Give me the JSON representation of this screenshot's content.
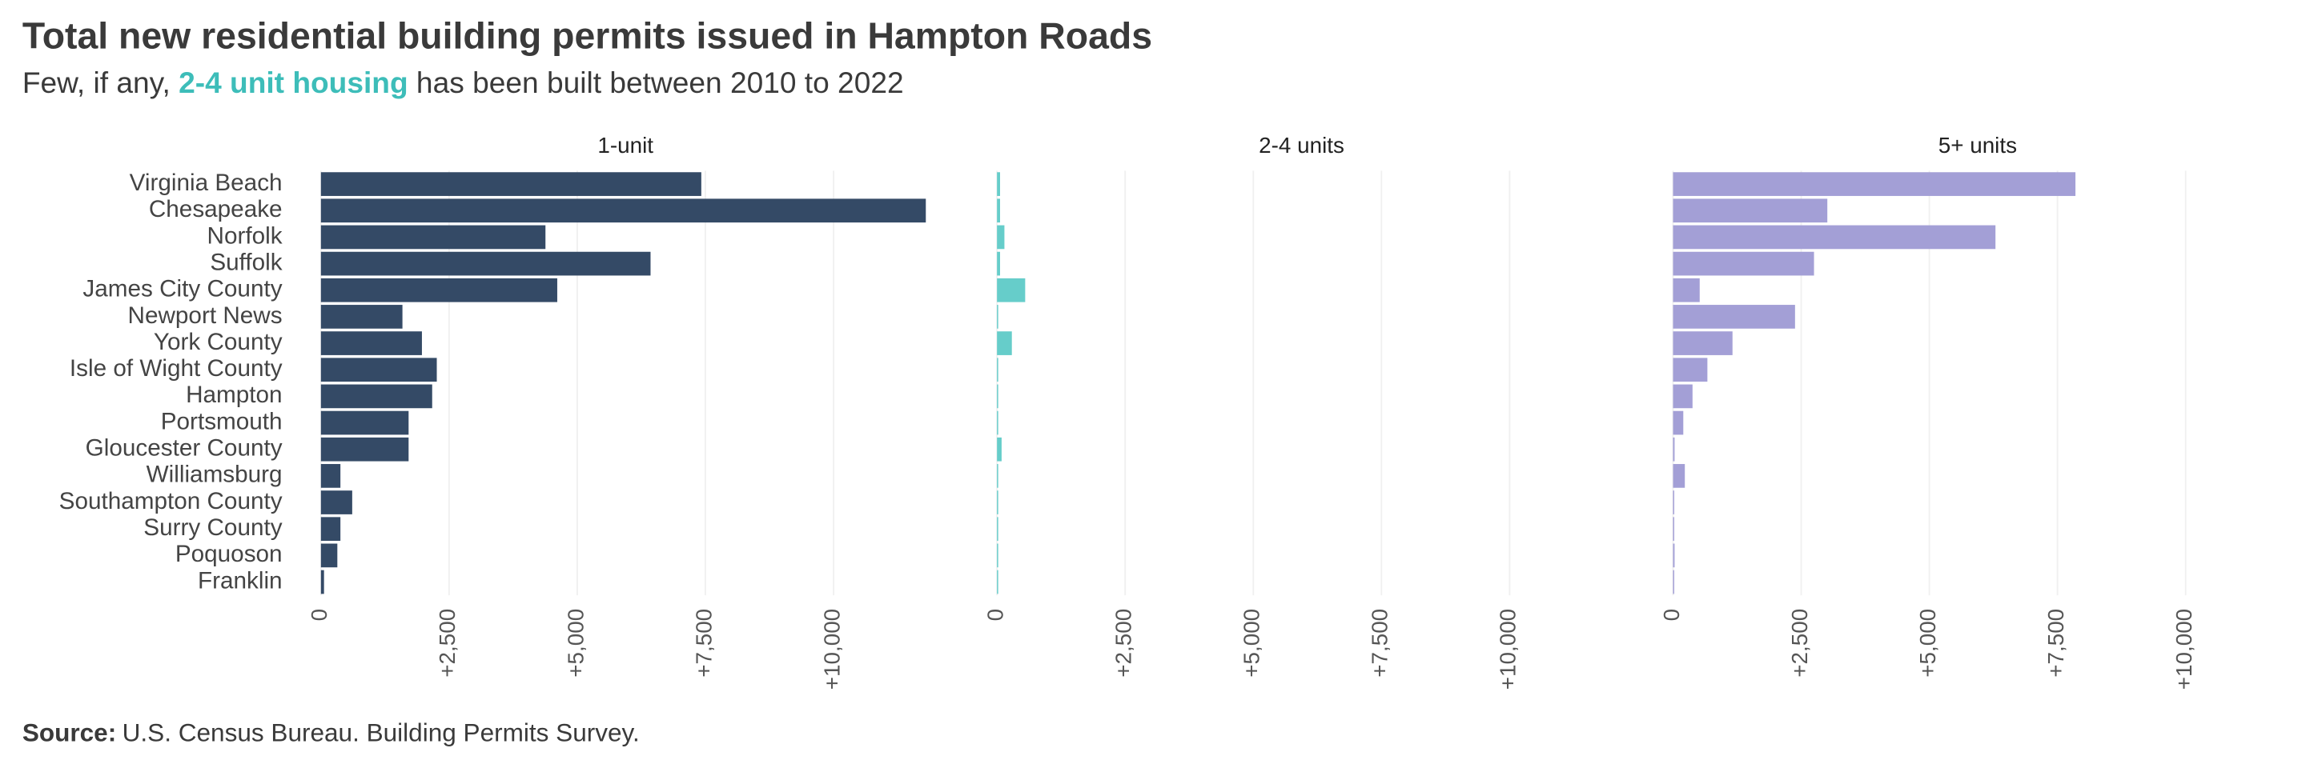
{
  "chart_data": {
    "type": "bar",
    "orientation": "horizontal",
    "title": "Total new residential building permits issued in Hampton Roads",
    "subtitle": [
      "Few, if any, ",
      "2-4 unit housing",
      " has been built between 2010 to 2022"
    ],
    "source": {
      "label": "Source:",
      "text": "U.S. Census Bureau. Building Permits Survey."
    },
    "categories": [
      "Virginia Beach",
      "Chesapeake",
      "Norfolk",
      "Suffolk",
      "James City County",
      "Newport News",
      "York County",
      "Isle of Wight County",
      "Hampton",
      "Portsmouth",
      "Gloucester County",
      "Williamsburg",
      "Southampton County",
      "Surry County",
      "Poquoson",
      "Franklin"
    ],
    "series": [
      {
        "name": "1-unit",
        "color": "#344a66",
        "values": [
          7420,
          11800,
          4380,
          6430,
          4610,
          1590,
          1970,
          2260,
          2170,
          1710,
          1710,
          380,
          610,
          380,
          320,
          60
        ]
      },
      {
        "name": "2-4 units",
        "color": "#66cdca",
        "values": [
          60,
          60,
          145,
          60,
          550,
          0,
          290,
          0,
          0,
          0,
          90,
          0,
          20,
          0,
          20,
          0
        ]
      },
      {
        "name": "5+ units",
        "color": "#a39fd6",
        "values": [
          7850,
          3010,
          6290,
          2750,
          520,
          2380,
          1160,
          670,
          380,
          200,
          30,
          230,
          0,
          0,
          30,
          0
        ]
      }
    ],
    "xlim": [
      0,
      12000
    ],
    "xticks": [
      0,
      {
        "value": 2500,
        "label": "+2,500"
      },
      {
        "value": 5000,
        "label": "+5,000"
      },
      {
        "value": 7500,
        "label": "+7,500"
      },
      {
        "value": 10000,
        "label": "+10,000"
      }
    ],
    "grid": true
  }
}
